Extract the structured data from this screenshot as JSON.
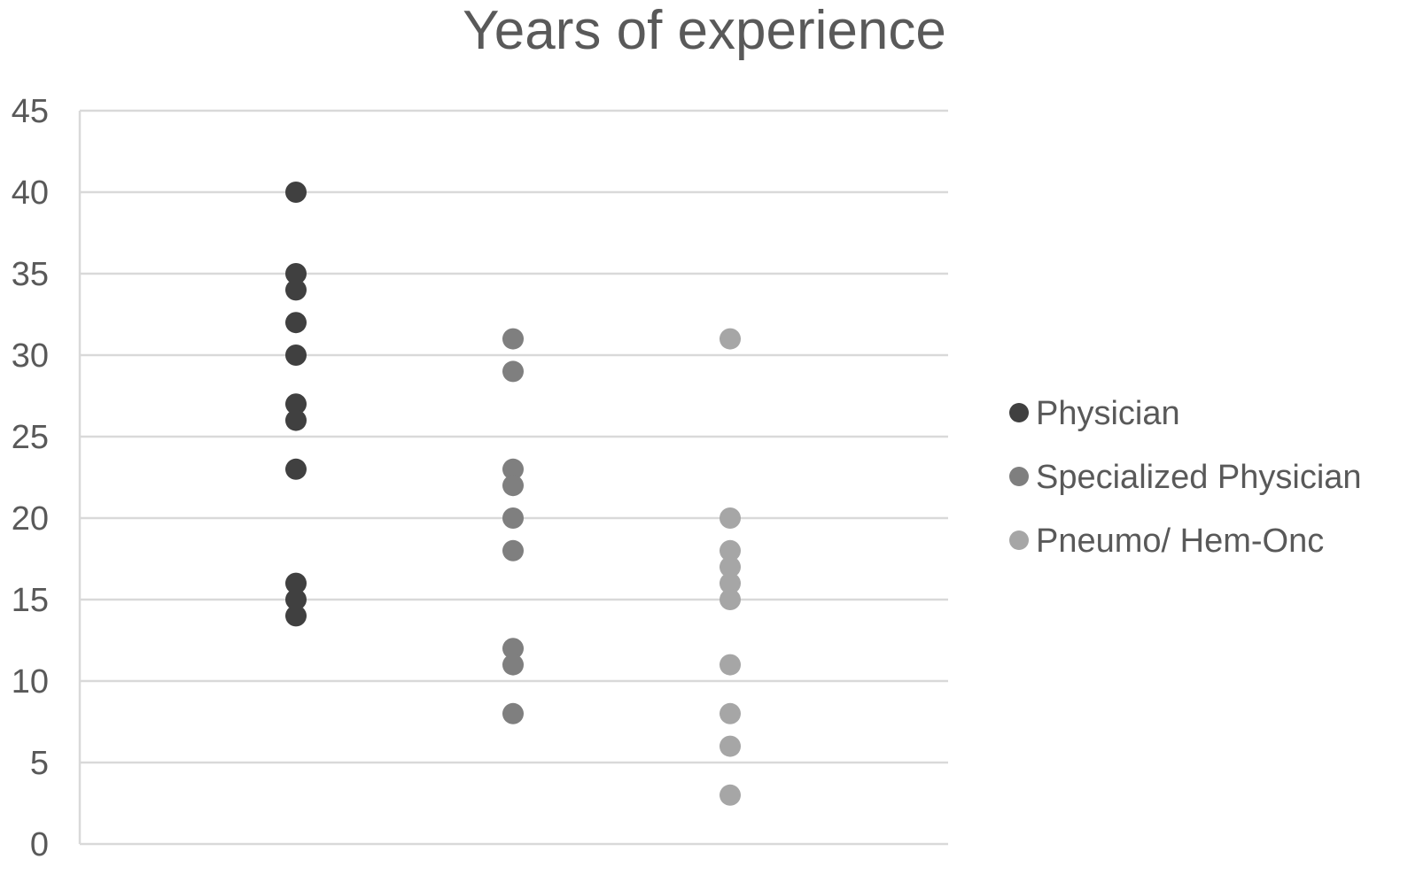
{
  "chart_data": {
    "type": "scatter",
    "title": "Years of experience",
    "xlabel": "",
    "ylabel": "",
    "ylim": [
      0,
      45
    ],
    "yticks": [
      0,
      5,
      10,
      15,
      20,
      25,
      30,
      35,
      40,
      45
    ],
    "grid": true,
    "legend_position": "right",
    "categories": [
      "Physician",
      "Specialized Physician",
      "Pneumo/ Hem-Onc"
    ],
    "series": [
      {
        "name": "Physician",
        "color": "#404040",
        "values": [
          40,
          35,
          34,
          32,
          30,
          27,
          26,
          23,
          16,
          15,
          14
        ]
      },
      {
        "name": "Specialized Physician",
        "color": "#7f7f7f",
        "values": [
          31,
          29,
          23,
          22,
          20,
          18,
          12,
          11,
          8
        ]
      },
      {
        "name": "Pneumo/ Hem-Onc",
        "color": "#a6a6a6",
        "values": [
          31,
          20,
          18,
          17,
          16,
          15,
          11,
          8,
          6,
          3
        ]
      }
    ]
  }
}
